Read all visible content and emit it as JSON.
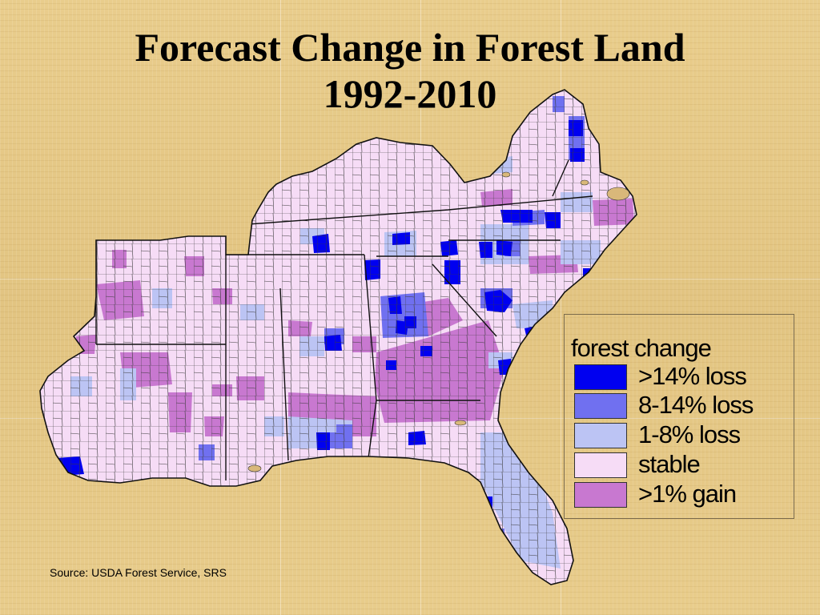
{
  "title": {
    "line1": "Forecast Change in Forest Land",
    "line2": "1992-2010"
  },
  "legend": {
    "title": "forest change",
    "items": [
      {
        "label": ">14% loss",
        "color": "#0000f0"
      },
      {
        "label": "8-14% loss",
        "color": "#7070f0"
      },
      {
        "label": "1-8% loss",
        "color": "#bcc4f4"
      },
      {
        "label": "stable",
        "color": "#f6dcf6"
      },
      {
        "label": ">1% gain",
        "color": "#c878d0"
      }
    ]
  },
  "source": "Source:  USDA Forest Service, SRS",
  "colors": {
    "water": "#d9b87a",
    "county_border": "#222222",
    "background": "#e6c987"
  }
}
